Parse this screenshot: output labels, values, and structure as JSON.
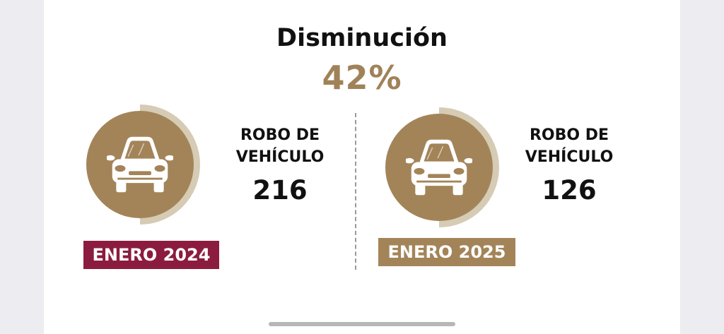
{
  "header": {
    "title": "Disminución",
    "percentage": "42%"
  },
  "stats": [
    {
      "label_line1": "ROBO DE",
      "label_line2": "VEHÍCULO",
      "value": "216",
      "period": "ENERO 2024",
      "badge_color": "#8b1c40",
      "icon": "car-icon"
    },
    {
      "label_line1": "ROBO DE",
      "label_line2": "VEHÍCULO",
      "value": "126",
      "period": "ENERO 2025",
      "badge_color": "#a38459",
      "icon": "car-icon"
    }
  ],
  "colors": {
    "accent_gold": "#a08259",
    "circle_fill": "#a38459",
    "ring": "#d6cbb4",
    "text": "#111111"
  }
}
